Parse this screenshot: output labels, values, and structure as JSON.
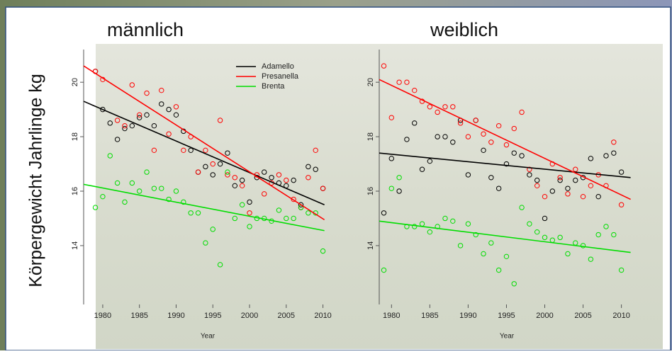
{
  "y_label": "Körpergewicht Jahrlinge kg",
  "chart_data": [
    {
      "type": "scatter",
      "title": "männlich",
      "xlabel": "Year",
      "x": [
        1979,
        1980,
        1981,
        1982,
        1983,
        1984,
        1985,
        1986,
        1987,
        1988,
        1989,
        1990,
        1991,
        1992,
        1993,
        1994,
        1995,
        1996,
        1997,
        1998,
        1999,
        2000,
        2001,
        2002,
        2003,
        2004,
        2005,
        2006,
        2007,
        2008,
        2009,
        2010
      ],
      "xlim": [
        1977.4,
        2011.2
      ],
      "ylim": [
        11.84,
        21.2
      ],
      "xticks": [
        1980,
        1985,
        1990,
        1995,
        2000,
        2005,
        2010
      ],
      "yticks": [
        14,
        16,
        18,
        20
      ],
      "legend": "top-right",
      "trend_x": [
        1977.4,
        2010.2
      ],
      "series": [
        {
          "name": "Adamello",
          "color": "#000000",
          "trend": [
            19.3,
            15.5
          ],
          "values": [
            20.4,
            19.0,
            18.5,
            17.9,
            18.3,
            18.4,
            18.7,
            18.8,
            18.4,
            19.2,
            19.0,
            18.8,
            18.2,
            17.5,
            16.7,
            16.9,
            16.6,
            17.0,
            17.4,
            16.2,
            16.4,
            15.6,
            16.5,
            16.7,
            16.5,
            16.3,
            16.2,
            16.4,
            15.5,
            16.9,
            16.8,
            16.1
          ]
        },
        {
          "name": "Presanella",
          "color": "#ff0000",
          "trend": [
            20.6,
            14.95
          ],
          "values": [
            20.4,
            20.1,
            null,
            18.6,
            18.4,
            19.9,
            18.8,
            19.6,
            17.5,
            19.7,
            18.1,
            19.1,
            17.5,
            18.0,
            16.7,
            17.5,
            17.0,
            18.6,
            16.6,
            16.5,
            16.2,
            15.2,
            16.6,
            15.9,
            16.3,
            16.6,
            16.4,
            15.7,
            15.4,
            16.5,
            17.5,
            16.1
          ]
        },
        {
          "name": "Brenta",
          "color": "#00dd00",
          "trend": [
            16.25,
            14.55
          ],
          "values": [
            15.4,
            15.8,
            17.3,
            16.3,
            15.6,
            16.3,
            16.0,
            16.7,
            16.1,
            16.1,
            15.7,
            16.0,
            15.6,
            15.2,
            15.2,
            14.1,
            14.6,
            13.3,
            16.7,
            15.0,
            15.5,
            14.7,
            15.0,
            15.0,
            14.9,
            15.3,
            15.0,
            15.0,
            15.4,
            15.2,
            15.2,
            13.8
          ]
        }
      ]
    },
    {
      "type": "scatter",
      "title": "weiblich",
      "xlabel": "Year",
      "x": [
        1979,
        1980,
        1981,
        1982,
        1983,
        1984,
        1985,
        1986,
        1987,
        1988,
        1989,
        1990,
        1991,
        1992,
        1993,
        1994,
        1995,
        1996,
        1997,
        1998,
        1999,
        2000,
        2001,
        2002,
        2003,
        2004,
        2005,
        2006,
        2007,
        2008,
        2009,
        2010
      ],
      "xlim": [
        1978.4,
        2011.7
      ],
      "ylim": [
        11.84,
        21.2
      ],
      "xticks": [
        1980,
        1985,
        1990,
        1995,
        2000,
        2005,
        2010
      ],
      "yticks": [
        14,
        16,
        18,
        20
      ],
      "trend_x": [
        1978.4,
        2011.2
      ],
      "series": [
        {
          "color": "#000000",
          "trend": [
            17.4,
            16.5
          ],
          "values": [
            15.2,
            17.2,
            16.0,
            17.9,
            18.5,
            16.8,
            17.1,
            18.0,
            18.0,
            17.8,
            18.6,
            16.6,
            18.6,
            17.5,
            16.5,
            16.1,
            17.0,
            17.4,
            17.3,
            16.6,
            16.4,
            15.0,
            16.0,
            16.4,
            16.1,
            16.4,
            16.5,
            17.2,
            15.8,
            17.3,
            17.4,
            16.7
          ]
        },
        {
          "color": "#ff0000",
          "trend": [
            20.1,
            15.7
          ],
          "values": [
            20.6,
            18.7,
            20.0,
            20.0,
            19.7,
            19.3,
            19.1,
            18.9,
            19.1,
            19.1,
            18.5,
            18.0,
            18.6,
            18.1,
            17.8,
            18.4,
            17.7,
            18.3,
            18.9,
            16.8,
            16.2,
            15.8,
            17.0,
            16.5,
            15.9,
            16.8,
            15.8,
            16.2,
            16.6,
            16.2,
            17.8,
            15.5
          ]
        },
        {
          "color": "#00dd00",
          "trend": [
            14.9,
            13.75
          ],
          "values": [
            13.1,
            16.1,
            16.5,
            14.7,
            14.7,
            14.8,
            14.5,
            14.7,
            15.0,
            14.9,
            14.0,
            14.8,
            14.4,
            13.7,
            14.1,
            13.1,
            13.6,
            12.6,
            15.4,
            14.8,
            14.5,
            14.3,
            14.2,
            14.3,
            13.7,
            14.1,
            14.0,
            13.5,
            14.4,
            14.7,
            14.4,
            13.1
          ]
        }
      ]
    }
  ]
}
